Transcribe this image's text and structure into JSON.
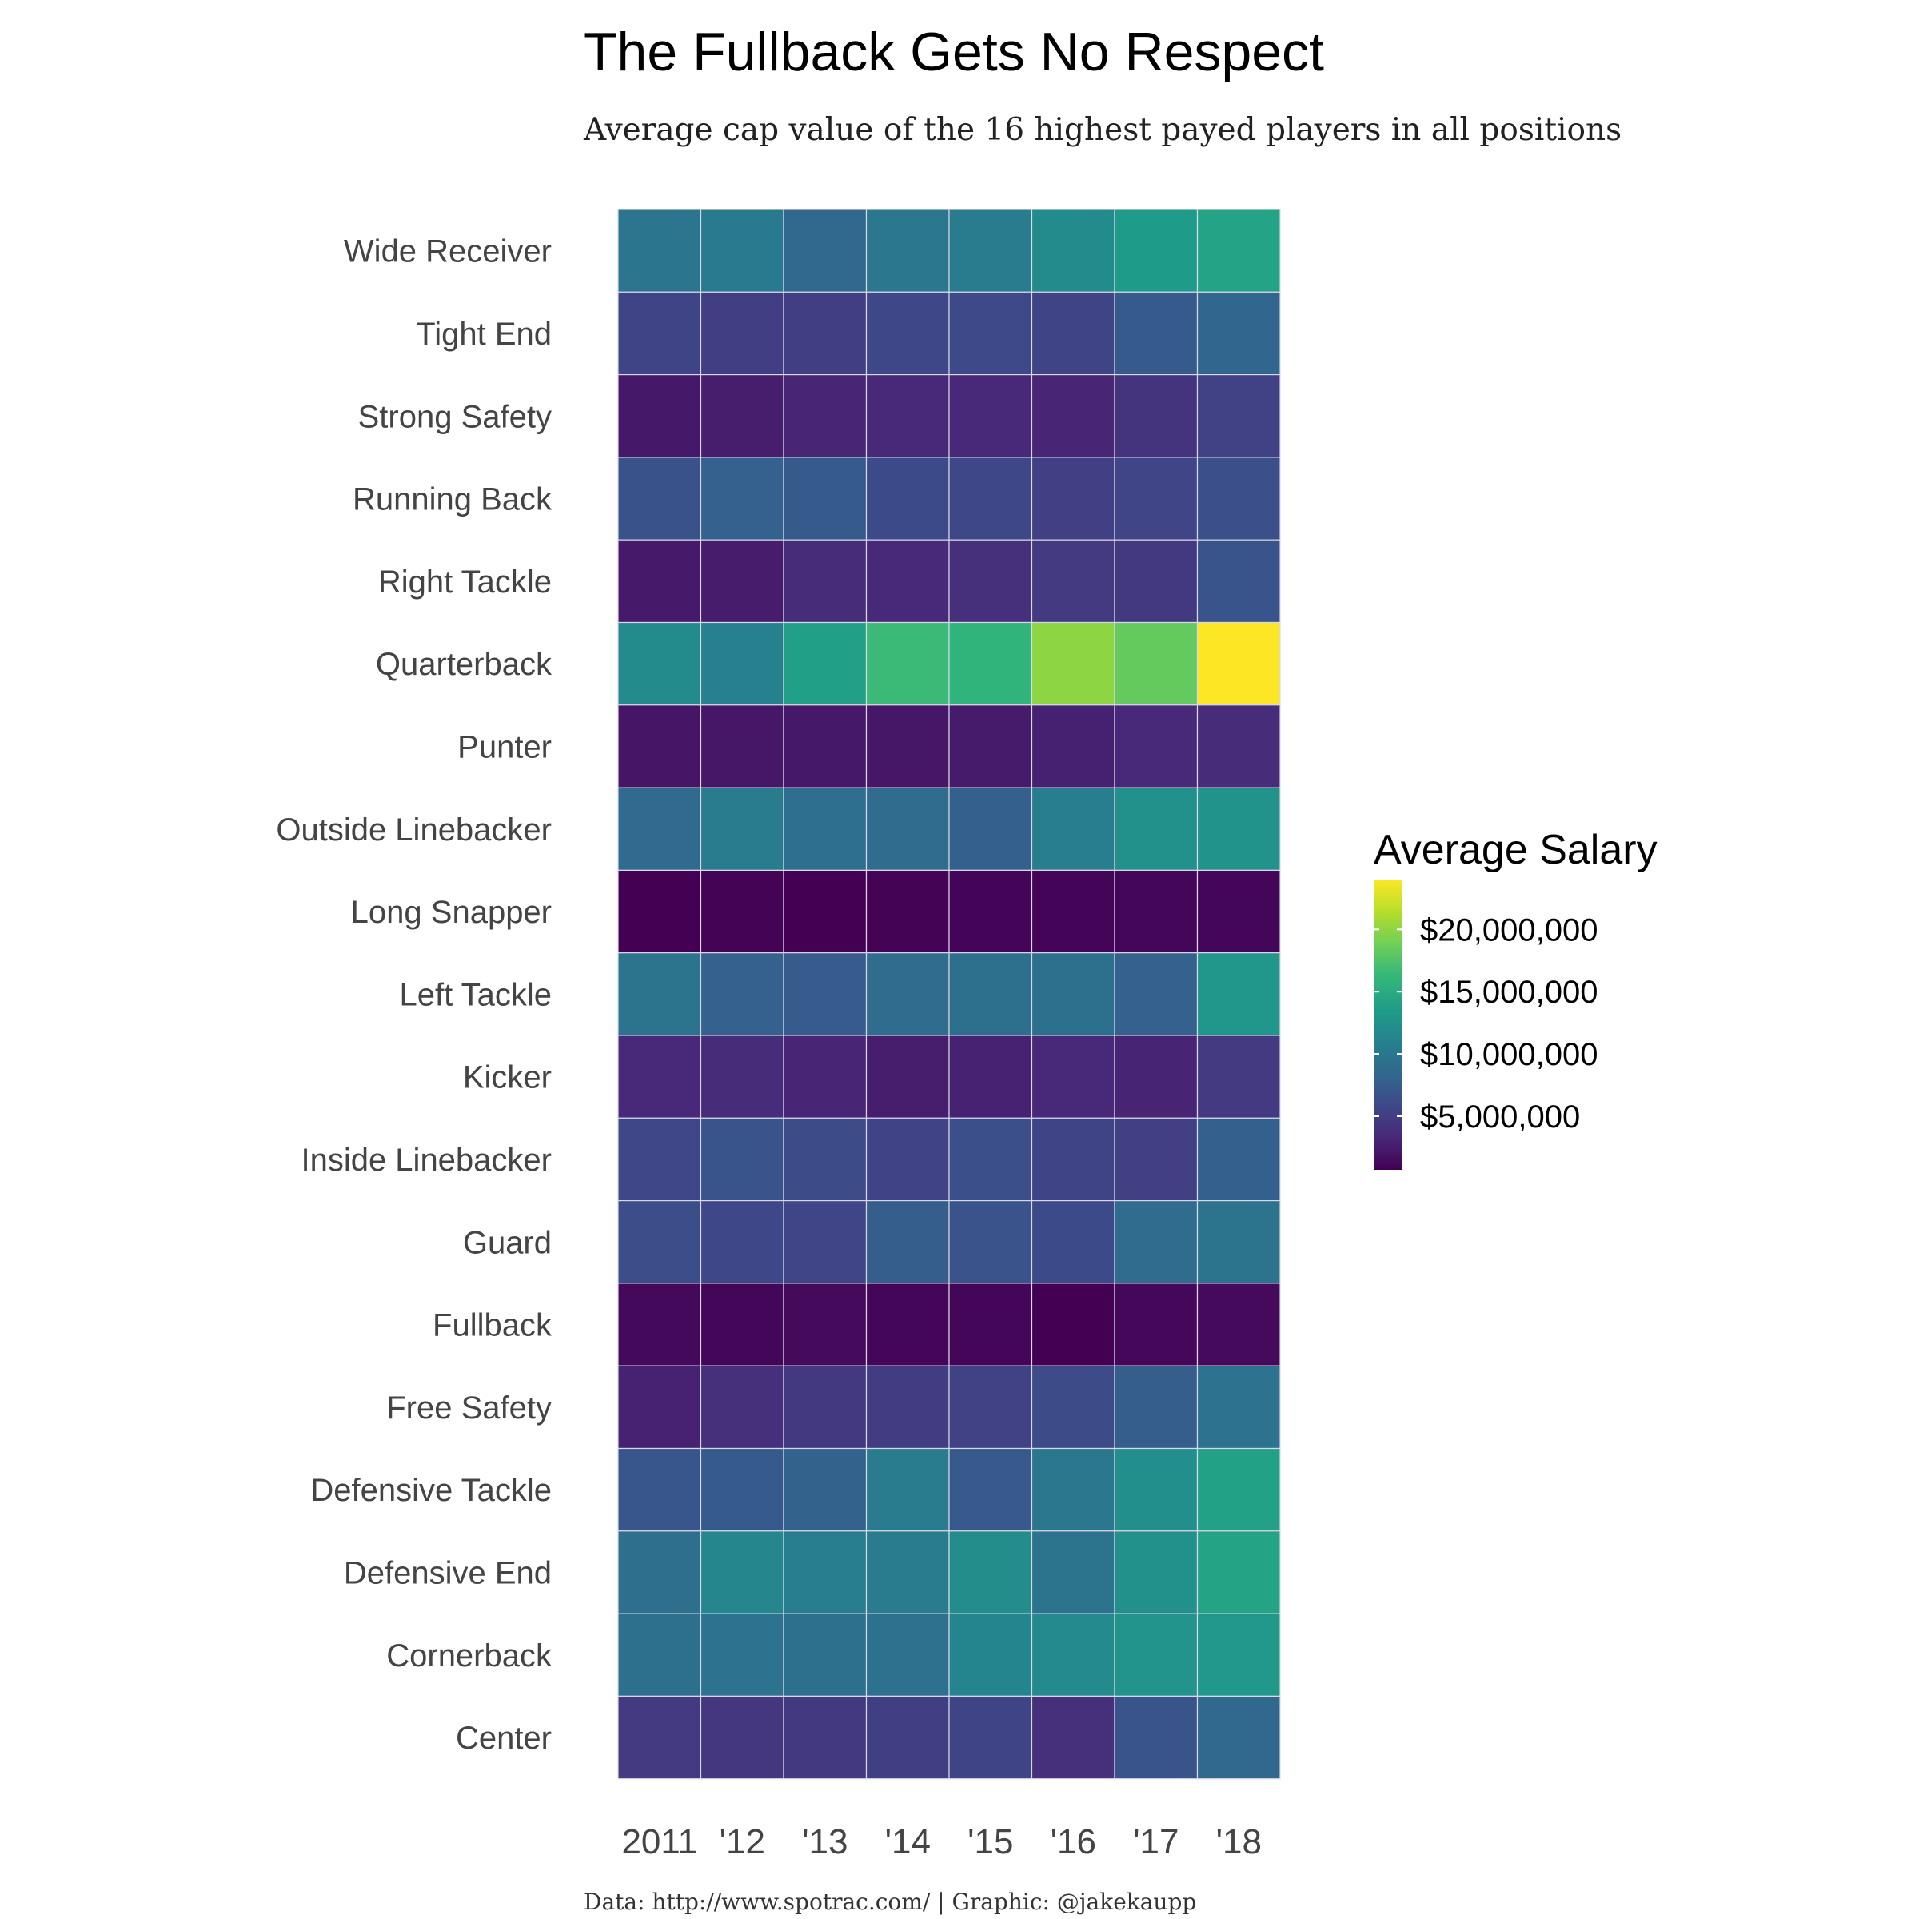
{
  "chart_data": {
    "type": "heatmap",
    "title": "The Fullback Gets No Respect",
    "subtitle": "Average cap value of the 16 highest payed players in all positions",
    "caption": "Data: http://www.spotrac.com/ | Graphic: @jakekaupp",
    "x": [
      "2011",
      "'12",
      "'13",
      "'14",
      "'15",
      "'16",
      "'17",
      "'18"
    ],
    "y": [
      "Wide Receiver",
      "Tight End",
      "Strong Safety",
      "Running Back",
      "Right Tackle",
      "Quarterback",
      "Punter",
      "Outside Linebacker",
      "Long Snapper",
      "Left Tackle",
      "Kicker",
      "Inside Linebacker",
      "Guard",
      "Fullback",
      "Free Safety",
      "Defensive Tackle",
      "Defensive End",
      "Cornerback",
      "Center"
    ],
    "values": [
      [
        9800000,
        10300000,
        8500000,
        10000000,
        10400000,
        11900000,
        13500000,
        14200000
      ],
      [
        5500000,
        5000000,
        5000000,
        5800000,
        5900000,
        5500000,
        7300000,
        8400000
      ],
      [
        2200000,
        2600000,
        3100000,
        3300000,
        3400000,
        3100000,
        4200000,
        5300000
      ],
      [
        6600000,
        7900000,
        7300000,
        6000000,
        5800000,
        5200000,
        5600000,
        6400000
      ],
      [
        2300000,
        2500000,
        3600000,
        3400000,
        3900000,
        4700000,
        4600000,
        6800000
      ],
      [
        11900000,
        10900000,
        13900000,
        16500000,
        15800000,
        20000000,
        18400000,
        24000000
      ],
      [
        2000000,
        2100000,
        2200000,
        2100000,
        2400000,
        2800000,
        3300000,
        3600000
      ],
      [
        8700000,
        10400000,
        9100000,
        8900000,
        7800000,
        10600000,
        12400000,
        12600000
      ],
      [
        700000,
        800000,
        700000,
        800000,
        900000,
        900000,
        1000000,
        1000000
      ],
      [
        9600000,
        7900000,
        7400000,
        8900000,
        9300000,
        9300000,
        7900000,
        12900000
      ],
      [
        3300000,
        3600000,
        3100000,
        2600000,
        2900000,
        3300000,
        3000000,
        4700000
      ],
      [
        5700000,
        6800000,
        6100000,
        5400000,
        6400000,
        5500000,
        5200000,
        7800000
      ],
      [
        6300000,
        5800000,
        5600000,
        7600000,
        6700000,
        6000000,
        8900000,
        9700000
      ],
      [
        1200000,
        1000000,
        1300000,
        1000000,
        1000000,
        700000,
        1100000,
        1300000
      ],
      [
        2900000,
        3900000,
        4600000,
        4900000,
        5300000,
        6100000,
        7600000,
        9500000
      ],
      [
        7000000,
        7300000,
        8000000,
        10400000,
        7200000,
        10000000,
        12300000,
        14000000
      ],
      [
        9200000,
        11400000,
        10600000,
        10400000,
        12100000,
        9600000,
        12400000,
        14300000
      ],
      [
        9300000,
        9500000,
        9300000,
        9400000,
        11300000,
        11800000,
        12700000,
        13200000
      ],
      [
        4700000,
        4400000,
        4600000,
        5100000,
        5500000,
        3900000,
        6800000,
        8500000
      ]
    ],
    "legend": {
      "title": "Average Salary",
      "ticks": [
        "$5,000,000",
        "$10,000,000",
        "$15,000,000",
        "$20,000,000"
      ],
      "tick_values": [
        5000000,
        10000000,
        15000000,
        20000000
      ],
      "range": [
        700000,
        24000000
      ],
      "placement": "right",
      "colormap": "viridis"
    },
    "grid": false
  }
}
